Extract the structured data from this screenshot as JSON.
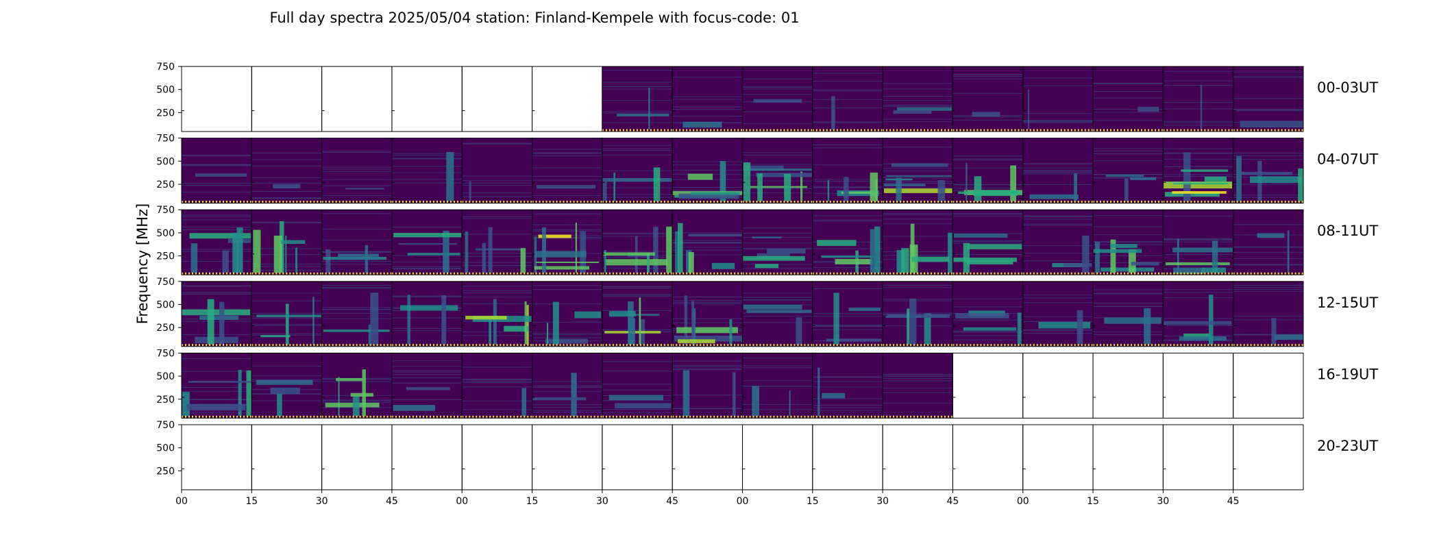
{
  "chart_data": {
    "type": "heatmap",
    "title": "Full day spectra 2025/05/04 station: Finland-Kempele with focus-code: 01",
    "ylabel": "Frequency [MHz]",
    "xlabel": "",
    "ylim": [
      45,
      750
    ],
    "y_ticks": [
      "250",
      "500",
      "750"
    ],
    "x_tick_labels": [
      "00",
      "15",
      "30",
      "45",
      "00",
      "15",
      "30",
      "45",
      "00",
      "15",
      "30",
      "45",
      "00",
      "15",
      "30",
      "45"
    ],
    "colormap": "viridis",
    "colors": {
      "low": "#440154",
      "mid": "#21918c",
      "high": "#fde725"
    },
    "panels_per_row": 16,
    "minutes_per_panel": 15,
    "rows": [
      {
        "label": "00-03UT",
        "panels": [
          0,
          0,
          0,
          0,
          0,
          0,
          1,
          1,
          1,
          1,
          1,
          1,
          1,
          1,
          1,
          1
        ],
        "activity": [
          0,
          0,
          0,
          0,
          0,
          0,
          0.15,
          0.1,
          0.1,
          0.1,
          0.15,
          0.1,
          0.1,
          0.1,
          0.1,
          0.1
        ]
      },
      {
        "label": "04-07UT",
        "panels": [
          1,
          1,
          1,
          1,
          1,
          1,
          1,
          1,
          1,
          1,
          1,
          1,
          1,
          1,
          1,
          1
        ],
        "activity": [
          0.1,
          0.1,
          0.1,
          0.1,
          0.1,
          0.12,
          0.35,
          0.55,
          0.75,
          0.6,
          0.65,
          0.6,
          0.2,
          0.25,
          0.8,
          0.5
        ]
      },
      {
        "label": "08-11UT",
        "panels": [
          1,
          1,
          1,
          1,
          1,
          1,
          1,
          1,
          1,
          1,
          1,
          1,
          1,
          1,
          1,
          1
        ],
        "activity": [
          0.6,
          0.6,
          0.4,
          0.4,
          0.45,
          0.8,
          0.75,
          0.6,
          0.45,
          0.55,
          0.6,
          0.45,
          0.25,
          0.65,
          0.6,
          0.2
        ]
      },
      {
        "label": "12-15UT",
        "panels": [
          1,
          1,
          1,
          1,
          1,
          1,
          1,
          1,
          1,
          1,
          1,
          1,
          1,
          1,
          1,
          1
        ],
        "activity": [
          0.45,
          0.4,
          0.25,
          0.25,
          0.7,
          0.35,
          0.7,
          0.7,
          0.3,
          0.25,
          0.45,
          0.35,
          0.2,
          0.2,
          0.4,
          0.2
        ]
      },
      {
        "label": "16-19UT",
        "panels": [
          1,
          1,
          1,
          1,
          1,
          1,
          1,
          1,
          1,
          1,
          1,
          0,
          0,
          0,
          0,
          0
        ],
        "activity": [
          0.5,
          0.3,
          0.55,
          0.2,
          0.1,
          0.15,
          0.15,
          0.2,
          0.2,
          0.15,
          0,
          0,
          0,
          0,
          0,
          0
        ]
      },
      {
        "label": "20-23UT",
        "panels": [
          0,
          0,
          0,
          0,
          0,
          0,
          0,
          0,
          0,
          0,
          0,
          0,
          0,
          0,
          0,
          0
        ],
        "activity": [
          0,
          0,
          0,
          0,
          0,
          0,
          0,
          0,
          0,
          0,
          0,
          0,
          0,
          0,
          0,
          0
        ]
      }
    ]
  }
}
